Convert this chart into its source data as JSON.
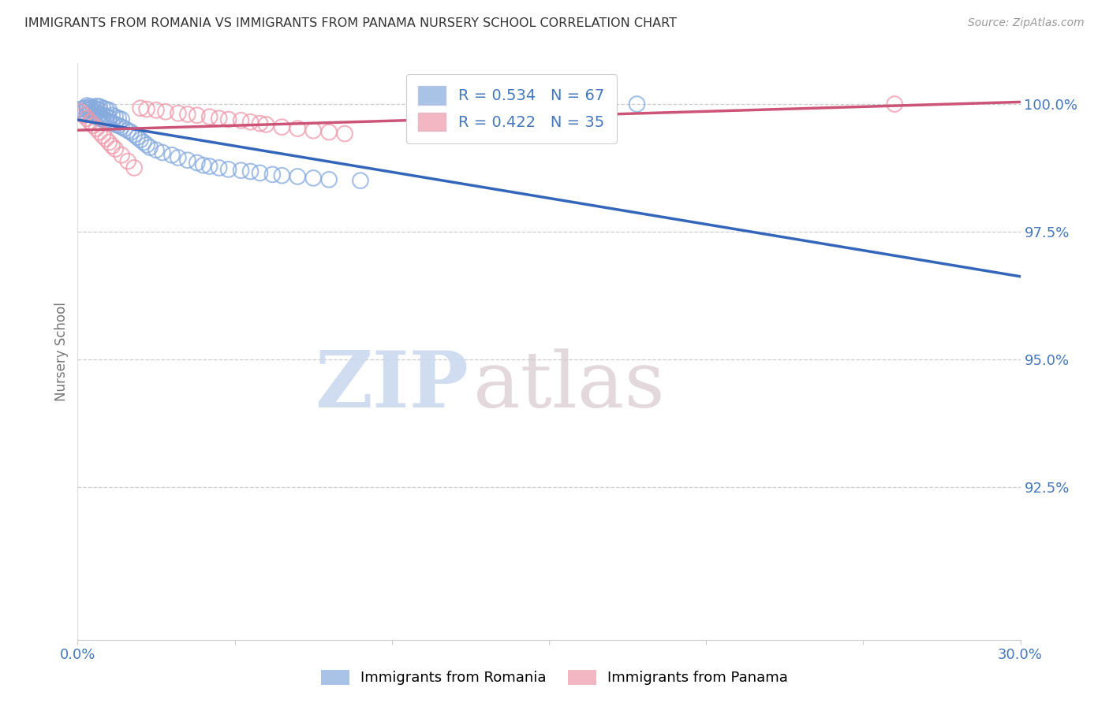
{
  "title": "IMMIGRANTS FROM ROMANIA VS IMMIGRANTS FROM PANAMA NURSERY SCHOOL CORRELATION CHART",
  "source": "Source: ZipAtlas.com",
  "ylabel": "Nursery School",
  "ytick_labels": [
    "100.0%",
    "97.5%",
    "95.0%",
    "92.5%"
  ],
  "ytick_values": [
    1.0,
    0.975,
    0.95,
    0.925
  ],
  "xlim": [
    0.0,
    0.3
  ],
  "ylim": [
    0.895,
    1.008
  ],
  "romania_color": "#85aadd",
  "panama_color": "#ee99aa",
  "romania_R": 0.534,
  "romania_N": 67,
  "panama_R": 0.422,
  "panama_N": 35,
  "legend_romania": "Immigrants from Romania",
  "legend_panama": "Immigrants from Panama",
  "romania_x": [
    0.001,
    0.002,
    0.002,
    0.003,
    0.003,
    0.003,
    0.003,
    0.004,
    0.004,
    0.004,
    0.005,
    0.005,
    0.005,
    0.006,
    0.006,
    0.006,
    0.006,
    0.007,
    0.007,
    0.007,
    0.007,
    0.008,
    0.008,
    0.008,
    0.009,
    0.009,
    0.009,
    0.01,
    0.01,
    0.01,
    0.011,
    0.011,
    0.012,
    0.012,
    0.013,
    0.013,
    0.014,
    0.014,
    0.015,
    0.016,
    0.017,
    0.018,
    0.019,
    0.02,
    0.021,
    0.022,
    0.023,
    0.025,
    0.027,
    0.03,
    0.032,
    0.035,
    0.038,
    0.04,
    0.042,
    0.045,
    0.048,
    0.052,
    0.055,
    0.058,
    0.062,
    0.065,
    0.07,
    0.075,
    0.08,
    0.09,
    0.178
  ],
  "romania_y": [
    0.999,
    0.9985,
    0.9992,
    0.998,
    0.9988,
    0.9993,
    0.9997,
    0.9982,
    0.999,
    0.9995,
    0.9978,
    0.9986,
    0.9993,
    0.9975,
    0.9983,
    0.999,
    0.9996,
    0.9972,
    0.998,
    0.9988,
    0.9995,
    0.997,
    0.9978,
    0.9992,
    0.9968,
    0.9976,
    0.999,
    0.9965,
    0.9973,
    0.9988,
    0.9963,
    0.9978,
    0.996,
    0.9975,
    0.9958,
    0.9972,
    0.9955,
    0.997,
    0.9952,
    0.9948,
    0.9945,
    0.994,
    0.9935,
    0.993,
    0.9925,
    0.992,
    0.9915,
    0.991,
    0.9905,
    0.99,
    0.9895,
    0.989,
    0.9885,
    0.988,
    0.9878,
    0.9875,
    0.9872,
    0.987,
    0.9868,
    0.9865,
    0.9862,
    0.986,
    0.9858,
    0.9855,
    0.9852,
    0.985,
    1.0
  ],
  "panama_x": [
    0.001,
    0.002,
    0.003,
    0.004,
    0.005,
    0.006,
    0.007,
    0.008,
    0.009,
    0.01,
    0.011,
    0.012,
    0.014,
    0.016,
    0.018,
    0.02,
    0.022,
    0.025,
    0.028,
    0.032,
    0.035,
    0.038,
    0.042,
    0.045,
    0.048,
    0.052,
    0.055,
    0.058,
    0.06,
    0.065,
    0.07,
    0.075,
    0.08,
    0.085,
    0.26
  ],
  "panama_y": [
    0.9985,
    0.9978,
    0.9972,
    0.9965,
    0.9958,
    0.9952,
    0.9945,
    0.9938,
    0.9932,
    0.9925,
    0.9918,
    0.9912,
    0.99,
    0.9888,
    0.9875,
    0.9992,
    0.999,
    0.9988,
    0.9985,
    0.9982,
    0.998,
    0.9978,
    0.9975,
    0.9972,
    0.997,
    0.9968,
    0.9965,
    0.9962,
    0.996,
    0.9955,
    0.9952,
    0.9948,
    0.9945,
    0.9942,
    1.0
  ],
  "watermark_zip": "ZIP",
  "watermark_atlas": "atlas",
  "background_color": "#ffffff",
  "grid_color": "#cccccc",
  "title_color": "#333333",
  "axis_label_color": "#4477bb",
  "trendline_romania_color": "#3366BB",
  "trendline_panama_color": "#CC5577"
}
